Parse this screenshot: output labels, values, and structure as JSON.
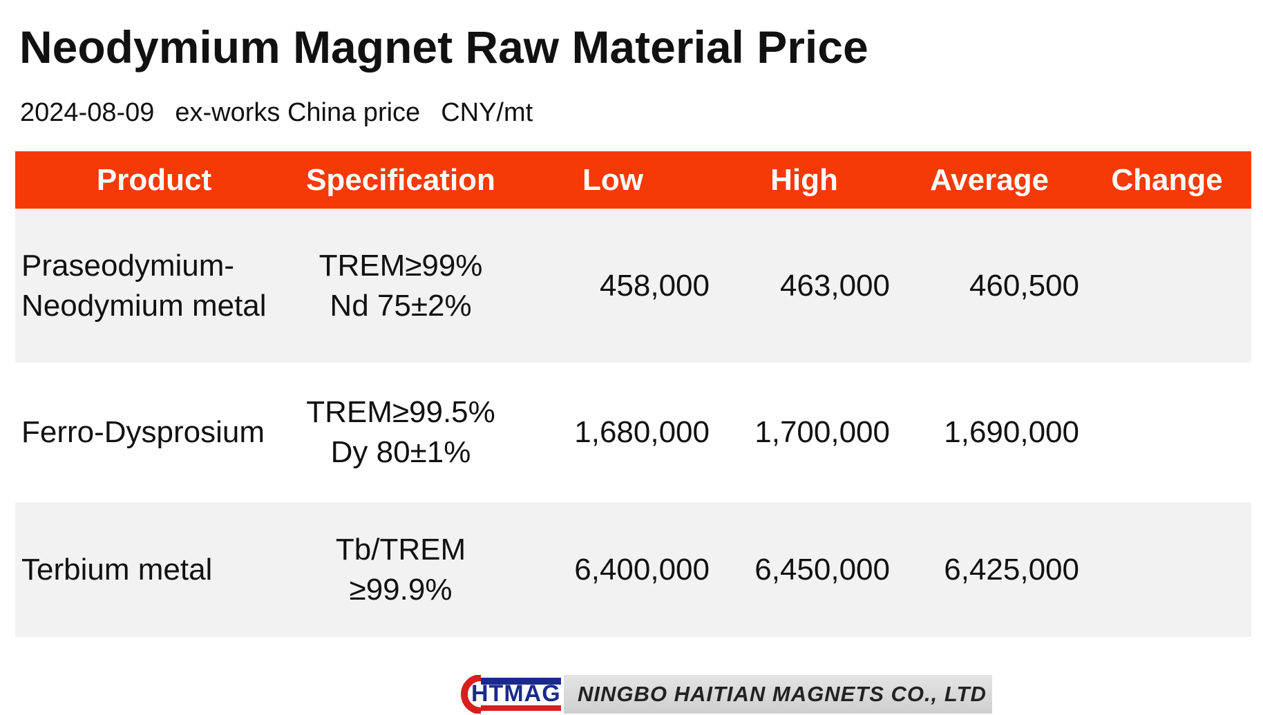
{
  "header": {
    "title": "Neodymium Magnet Raw Material Price",
    "date": "2024-08-09",
    "basis": "ex-works China price",
    "unit": "CNY/mt"
  },
  "table": {
    "columns": [
      "Product",
      "Specification",
      "Low",
      "High",
      "Average",
      "Change"
    ],
    "rows": [
      {
        "product": [
          "Praseodymium-",
          "Neodymium metal"
        ],
        "specification": [
          "TREM≥99%",
          "Nd 75±2%"
        ],
        "low": "458,000",
        "high": "463,000",
        "average": "460,500"
      },
      {
        "product": [
          "Ferro-Dysprosium"
        ],
        "specification": [
          "TREM≥99.5%",
          "Dy 80±1%"
        ],
        "low": "1,680,000",
        "high": "1,700,000",
        "average": "1,690,000"
      },
      {
        "product": [
          "Terbium metal"
        ],
        "specification": [
          "Tb/TREM",
          "≥99.9%"
        ],
        "low": "6,400,000",
        "high": "6,450,000",
        "average": "6,425,000"
      }
    ]
  },
  "footer": {
    "logo": "HTMAG",
    "company": "NINGBO HAITIAN MAGNETS CO., LTD"
  }
}
